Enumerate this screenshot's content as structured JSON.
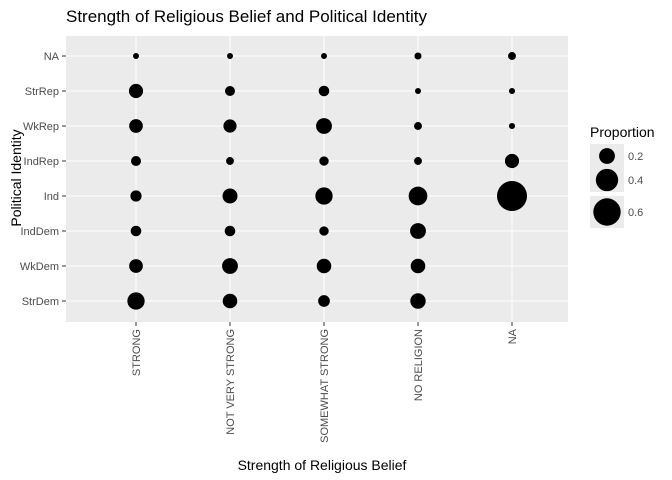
{
  "chart_data": {
    "type": "scatter",
    "title": "Strength of Religious Belief and Political Identity",
    "xlabel": "Strength of Religious Belief",
    "ylabel": "Political Identity",
    "x_categories": [
      "STRONG",
      "NOT VERY STRONG",
      "SOMEWHAT STRONG",
      "NO RELIGION",
      "NA"
    ],
    "y_categories": [
      "StrDem",
      "WkDem",
      "IndDem",
      "Ind",
      "IndRep",
      "WkRep",
      "StrRep",
      "NA"
    ],
    "size_legend": {
      "title": "Proportion",
      "breaks": [
        {
          "value": 0.2,
          "label": "0.2"
        },
        {
          "value": 0.4,
          "label": "0.4"
        },
        {
          "value": 0.6,
          "label": "0.6"
        }
      ]
    },
    "points": [
      {
        "x": "STRONG",
        "y": "NA",
        "proportion": 0.01
      },
      {
        "x": "STRONG",
        "y": "StrRep",
        "proportion": 0.16
      },
      {
        "x": "STRONG",
        "y": "WkRep",
        "proportion": 0.15
      },
      {
        "x": "STRONG",
        "y": "IndRep",
        "proportion": 0.08
      },
      {
        "x": "STRONG",
        "y": "Ind",
        "proportion": 0.1
      },
      {
        "x": "STRONG",
        "y": "IndDem",
        "proportion": 0.09
      },
      {
        "x": "STRONG",
        "y": "WkDem",
        "proportion": 0.15
      },
      {
        "x": "STRONG",
        "y": "StrDem",
        "proportion": 0.24
      },
      {
        "x": "NOT VERY STRONG",
        "y": "NA",
        "proportion": 0.01
      },
      {
        "x": "NOT VERY STRONG",
        "y": "StrRep",
        "proportion": 0.08
      },
      {
        "x": "NOT VERY STRONG",
        "y": "WkRep",
        "proportion": 0.14
      },
      {
        "x": "NOT VERY STRONG",
        "y": "IndRep",
        "proportion": 0.05
      },
      {
        "x": "NOT VERY STRONG",
        "y": "Ind",
        "proportion": 0.18
      },
      {
        "x": "NOT VERY STRONG",
        "y": "IndDem",
        "proportion": 0.09
      },
      {
        "x": "NOT VERY STRONG",
        "y": "WkDem",
        "proportion": 0.2
      },
      {
        "x": "NOT VERY STRONG",
        "y": "StrDem",
        "proportion": 0.17
      },
      {
        "x": "SOMEWHAT STRONG",
        "y": "NA",
        "proportion": 0.005
      },
      {
        "x": "SOMEWHAT STRONG",
        "y": "StrRep",
        "proportion": 0.09
      },
      {
        "x": "SOMEWHAT STRONG",
        "y": "WkRep",
        "proportion": 0.2
      },
      {
        "x": "SOMEWHAT STRONG",
        "y": "IndRep",
        "proportion": 0.07
      },
      {
        "x": "SOMEWHAT STRONG",
        "y": "Ind",
        "proportion": 0.24
      },
      {
        "x": "SOMEWHAT STRONG",
        "y": "IndDem",
        "proportion": 0.07
      },
      {
        "x": "SOMEWHAT STRONG",
        "y": "WkDem",
        "proportion": 0.17
      },
      {
        "x": "SOMEWHAT STRONG",
        "y": "StrDem",
        "proportion": 0.11
      },
      {
        "x": "NO RELIGION",
        "y": "NA",
        "proportion": 0.04
      },
      {
        "x": "NO RELIGION",
        "y": "StrRep",
        "proportion": 0.02
      },
      {
        "x": "NO RELIGION",
        "y": "WkRep",
        "proportion": 0.05
      },
      {
        "x": "NO RELIGION",
        "y": "IndRep",
        "proportion": 0.05
      },
      {
        "x": "NO RELIGION",
        "y": "Ind",
        "proportion": 0.28
      },
      {
        "x": "NO RELIGION",
        "y": "IndDem",
        "proportion": 0.2
      },
      {
        "x": "NO RELIGION",
        "y": "WkDem",
        "proportion": 0.17
      },
      {
        "x": "NO RELIGION",
        "y": "StrDem",
        "proportion": 0.19
      },
      {
        "x": "NA",
        "y": "NA",
        "proportion": 0.05
      },
      {
        "x": "NA",
        "y": "StrRep",
        "proportion": 0.03
      },
      {
        "x": "NA",
        "y": "WkRep",
        "proportion": 0.03
      },
      {
        "x": "NA",
        "y": "IndRep",
        "proportion": 0.16
      },
      {
        "x": "NA",
        "y": "Ind",
        "proportion": 0.72
      }
    ],
    "grid": true,
    "legend_position": "right",
    "colors": {
      "panel_background": "#ebebeb",
      "grid": "#ffffff",
      "point": "#000000",
      "tick_text": "#4d4d4d",
      "tick_mark": "#333333"
    }
  }
}
